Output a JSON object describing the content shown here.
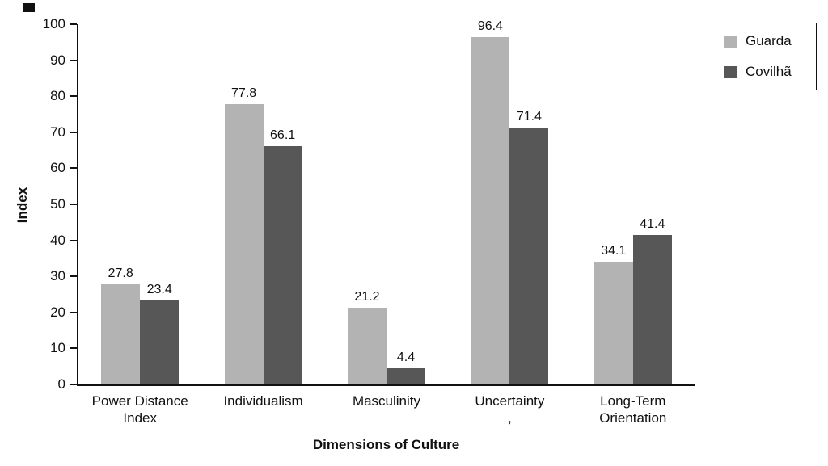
{
  "chart_data": {
    "type": "bar",
    "title": "",
    "xlabel": "Dimensions of Culture",
    "ylabel": "Index",
    "ylim": [
      0,
      100
    ],
    "ytick_step": 10,
    "grid": false,
    "legend_position": "top-right-outside",
    "categories": [
      "Power Distance\nIndex",
      "Individualism",
      "Masculinity",
      "Uncertainty\n,",
      "Long-Term\nOrientation"
    ],
    "series": [
      {
        "name": "Guarda",
        "color": "#b3b3b3",
        "values": [
          27.8,
          77.8,
          21.2,
          96.4,
          34.1
        ]
      },
      {
        "name": "Covilhã",
        "color": "#575757",
        "values": [
          23.4,
          66.1,
          4.4,
          71.4,
          41.4
        ]
      }
    ]
  }
}
